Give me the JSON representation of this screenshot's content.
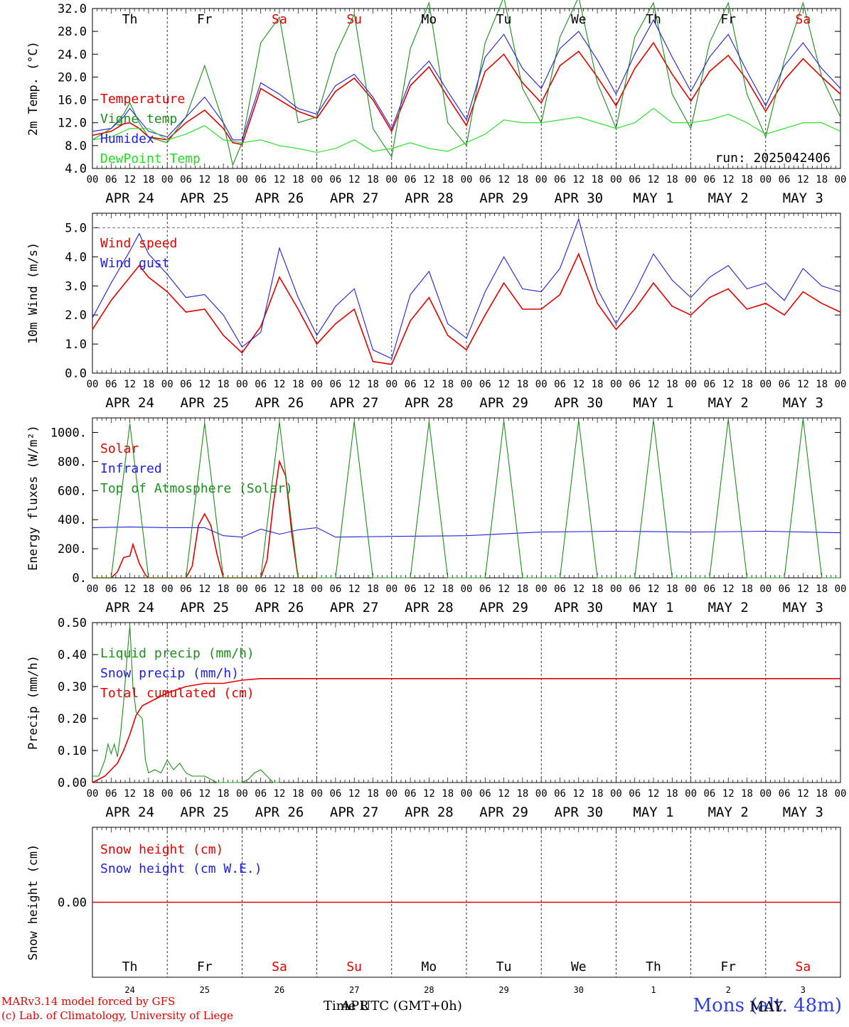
{
  "days": {
    "weekdays": [
      "Th",
      "Fr",
      "Sa",
      "Su",
      "Mo",
      "Tu",
      "We",
      "Th",
      "Fr",
      "Sa"
    ],
    "weekday_colors": [
      "#000000",
      "#000000",
      "#e00000",
      "#e00000",
      "#000000",
      "#000000",
      "#000000",
      "#000000",
      "#000000",
      "#e00000"
    ],
    "date_labels": [
      "APR 24",
      "APR 25",
      "APR 26",
      "APR 27",
      "APR 28",
      "APR 29",
      "APR 30",
      "MAY  1",
      "MAY  2",
      "MAY  3"
    ],
    "hour_labels": [
      "00",
      "06",
      "12",
      "18"
    ],
    "end_hour_label": "00",
    "day_numbers": [
      "24",
      "25",
      "26",
      "27",
      "28",
      "29",
      "30",
      "1",
      "2",
      "3"
    ]
  },
  "panels": {
    "temp": {
      "ylabel": "2m Temp. (°C)",
      "yticks": [
        "4.0",
        "8.0",
        "12.0",
        "16.0",
        "20.0",
        "24.0",
        "28.0",
        "32.0"
      ],
      "legend": [
        {
          "label": "Temperature",
          "color": "#e00000"
        },
        {
          "label": "Vigne temp",
          "color": "#1e8c1e"
        },
        {
          "label": "Humidex",
          "color": "#2020e0"
        },
        {
          "label": "DewPoint Temp",
          "color": "#22dd22"
        }
      ],
      "run_label": "run: 2025042406"
    },
    "wind": {
      "ylabel": "10m Wind (m/s)",
      "yticks": [
        "0.0",
        "1.0",
        "2.0",
        "3.0",
        "4.0",
        "5.0"
      ],
      "legend": [
        {
          "label": "Wind speed",
          "color": "#e00000"
        },
        {
          "label": "Wind gust",
          "color": "#2020e0"
        }
      ]
    },
    "energy": {
      "ylabel": "Energy fluxes (W/m²)",
      "yticks": [
        "0.",
        "200.",
        "400.",
        "600.",
        "800.",
        "1000."
      ],
      "legend": [
        {
          "label": "Solar",
          "color": "#e00000"
        },
        {
          "label": "Infrared",
          "color": "#2020e0"
        },
        {
          "label": "Top of Atmosphere (Solar)",
          "color": "#1e8c1e"
        }
      ]
    },
    "precip": {
      "ylabel": "Precip (mm/h)",
      "yticks": [
        "0.00",
        "0.10",
        "0.20",
        "0.30",
        "0.40",
        "0.50"
      ],
      "legend": [
        {
          "label": "Liquid precip (mm/h)",
          "color": "#1e8c1e"
        },
        {
          "label": "Snow precip (mm/h)",
          "color": "#2020e0"
        },
        {
          "label": "Total cumulated (cm)",
          "color": "#e00000"
        }
      ]
    },
    "snow": {
      "ylabel": "Snow height (cm)",
      "yticks": [
        "0.00"
      ],
      "legend": [
        {
          "label": "Snow height (cm)",
          "color": "#e00000"
        },
        {
          "label": "Snow height (cm W.E.)",
          "color": "#2020e0"
        }
      ]
    }
  },
  "footer": {
    "credit_line1": "MARv3.14 model forced by GFS",
    "credit_line2": "(c) Lab. of Climatology, University of Liege",
    "x_title": "Time UTC (GMT+0h)",
    "overlap_month": "APR",
    "station": "Mons (alt. 48m)",
    "station_month": "MAY"
  },
  "chart_data": [
    {
      "type": "line",
      "ylabel": "2m Temp. (°C)",
      "ylim": [
        4,
        32
      ],
      "x_unit": "hours since APR 24 00 UTC",
      "series": [
        {
          "name": "Temperature",
          "x": [
            0,
            6,
            10,
            12,
            15,
            18,
            24,
            30,
            36,
            42,
            45,
            48,
            54,
            60,
            66,
            72,
            78,
            84,
            90,
            96,
            102,
            108,
            114,
            120,
            126,
            132,
            138,
            144,
            150,
            156,
            162,
            168,
            174,
            180,
            186,
            192,
            198,
            204,
            210,
            216,
            222,
            228,
            234,
            240
          ],
          "values": [
            9.8,
            10.5,
            11.8,
            12.0,
            11.0,
            9.5,
            9.0,
            12.0,
            14.2,
            11.0,
            8.5,
            8.2,
            18.0,
            16.0,
            14.0,
            12.8,
            17.5,
            19.8,
            16.0,
            10.5,
            18.5,
            21.8,
            16.5,
            11.5,
            21.0,
            24.0,
            19.0,
            15.5,
            22.0,
            24.5,
            20.0,
            15.0,
            21.5,
            26.0,
            20.5,
            15.8,
            21.0,
            23.8,
            19.5,
            14.0,
            19.5,
            23.2,
            20.0,
            17.0
          ]
        },
        {
          "name": "Vigne temp",
          "x": [
            0,
            6,
            10,
            12,
            15,
            18,
            24,
            30,
            36,
            42,
            45,
            48,
            54,
            60,
            66,
            72,
            78,
            84,
            90,
            96,
            102,
            108,
            114,
            120,
            126,
            132,
            138,
            144,
            150,
            156,
            162,
            168,
            174,
            180,
            186,
            192,
            198,
            204,
            210,
            216,
            222,
            228,
            234,
            240
          ],
          "values": [
            9.0,
            11.0,
            13.5,
            15.5,
            12.0,
            9.5,
            8.5,
            13.0,
            22.0,
            12.0,
            4.6,
            8.5,
            26.0,
            30.5,
            12.0,
            13.0,
            24.0,
            31.0,
            11.0,
            6.0,
            25.0,
            33.0,
            12.0,
            8.0,
            26.0,
            34.0,
            18.0,
            12.0,
            27.0,
            34.0,
            19.0,
            11.0,
            27.0,
            33.0,
            17.0,
            11.0,
            26.0,
            33.0,
            17.0,
            9.5,
            23.0,
            33.0,
            20.0,
            13.0
          ]
        },
        {
          "name": "Humidex",
          "x": [
            0,
            6,
            10,
            12,
            15,
            18,
            24,
            30,
            36,
            42,
            45,
            48,
            54,
            60,
            66,
            72,
            78,
            84,
            90,
            96,
            102,
            108,
            114,
            120,
            126,
            132,
            138,
            144,
            150,
            156,
            162,
            168,
            174,
            180,
            186,
            192,
            198,
            204,
            210,
            216,
            222,
            228,
            234,
            240
          ],
          "values": [
            10.5,
            11.0,
            13.0,
            14.5,
            12.5,
            10.5,
            9.5,
            13.0,
            16.5,
            12.0,
            9.0,
            9.0,
            19.0,
            17.0,
            14.5,
            13.5,
            18.5,
            20.5,
            16.5,
            11.0,
            19.5,
            22.8,
            17.5,
            12.5,
            23.5,
            27.5,
            21.5,
            18.0,
            25.0,
            28.0,
            23.0,
            17.0,
            24.0,
            30.0,
            23.5,
            17.5,
            23.5,
            27.5,
            21.0,
            15.0,
            22.0,
            26.0,
            21.5,
            18.0
          ]
        },
        {
          "name": "DewPoint Temp",
          "x": [
            0,
            6,
            12,
            18,
            24,
            30,
            36,
            42,
            48,
            54,
            60,
            66,
            72,
            78,
            84,
            90,
            96,
            102,
            108,
            114,
            120,
            126,
            132,
            138,
            144,
            150,
            156,
            162,
            168,
            174,
            180,
            186,
            192,
            198,
            204,
            210,
            216,
            222,
            228,
            234,
            240
          ],
          "values": [
            9.0,
            9.5,
            11.0,
            11.0,
            9.0,
            10.0,
            11.5,
            9.0,
            8.5,
            9.0,
            8.0,
            7.5,
            6.8,
            7.5,
            9.0,
            7.0,
            7.5,
            8.5,
            7.5,
            7.0,
            8.5,
            10.0,
            12.5,
            12.0,
            12.0,
            12.5,
            13.0,
            12.0,
            11.0,
            12.0,
            14.5,
            12.0,
            12.0,
            12.5,
            13.5,
            12.0,
            10.0,
            11.0,
            12.0,
            12.0,
            10.5
          ]
        }
      ]
    },
    {
      "type": "line",
      "ylabel": "10m Wind (m/s)",
      "ylim": [
        0,
        5.5
      ],
      "x_unit": "hours since APR 24 00 UTC",
      "series": [
        {
          "name": "Wind speed",
          "x": [
            0,
            6,
            12,
            15,
            18,
            24,
            30,
            36,
            42,
            48,
            54,
            60,
            66,
            72,
            78,
            84,
            90,
            96,
            102,
            108,
            114,
            120,
            126,
            132,
            138,
            144,
            150,
            156,
            162,
            168,
            174,
            180,
            186,
            192,
            198,
            204,
            210,
            216,
            222,
            228,
            234,
            240
          ],
          "values": [
            1.5,
            2.5,
            3.3,
            3.7,
            3.3,
            2.8,
            2.1,
            2.2,
            1.3,
            0.7,
            1.6,
            3.3,
            2.2,
            1.0,
            1.7,
            2.2,
            0.4,
            0.3,
            1.8,
            2.6,
            1.3,
            0.8,
            2.0,
            3.1,
            2.2,
            2.2,
            2.7,
            4.1,
            2.4,
            1.5,
            2.2,
            3.1,
            2.3,
            2.0,
            2.6,
            2.9,
            2.2,
            2.4,
            2.0,
            2.8,
            2.4,
            2.1
          ]
        },
        {
          "name": "Wind gust",
          "x": [
            0,
            6,
            12,
            15,
            18,
            24,
            30,
            36,
            42,
            48,
            54,
            60,
            66,
            72,
            78,
            84,
            90,
            96,
            102,
            108,
            114,
            120,
            126,
            132,
            138,
            144,
            150,
            156,
            162,
            168,
            174,
            180,
            186,
            192,
            198,
            204,
            210,
            216,
            222,
            228,
            234,
            240
          ],
          "values": [
            1.9,
            3.1,
            4.2,
            4.8,
            4.1,
            3.4,
            2.6,
            2.7,
            2.0,
            0.9,
            1.4,
            4.3,
            2.6,
            1.3,
            2.3,
            2.9,
            0.8,
            0.5,
            2.7,
            3.5,
            1.7,
            1.2,
            2.8,
            4.0,
            2.9,
            2.8,
            3.6,
            5.3,
            2.9,
            1.7,
            2.8,
            4.1,
            3.2,
            2.6,
            3.3,
            3.7,
            2.9,
            3.1,
            2.5,
            3.6,
            3.0,
            2.8
          ]
        }
      ]
    },
    {
      "type": "line",
      "ylabel": "Energy fluxes (W/m²)",
      "ylim": [
        0,
        1100
      ],
      "x_unit": "hours since APR 24 00 UTC",
      "series": [
        {
          "name": "Solar",
          "x": [
            0,
            6,
            8,
            10,
            12,
            13,
            15,
            17,
            18,
            24,
            30,
            32,
            34,
            36,
            38,
            40,
            42,
            48,
            54,
            56,
            58,
            60,
            62,
            64,
            66,
            72
          ],
          "values": [
            0,
            0,
            40,
            140,
            150,
            230,
            100,
            20,
            0,
            0,
            0,
            80,
            360,
            440,
            360,
            160,
            0,
            0,
            0,
            120,
            500,
            800,
            700,
            300,
            0,
            0
          ]
        },
        {
          "name": "Infrared",
          "x": [
            0,
            12,
            24,
            36,
            42,
            48,
            54,
            60,
            66,
            72,
            78,
            96,
            120,
            144,
            168,
            192,
            216,
            240
          ],
          "values": [
            345,
            350,
            345,
            345,
            290,
            280,
            335,
            300,
            330,
            345,
            280,
            285,
            290,
            315,
            320,
            315,
            320,
            310
          ]
        },
        {
          "name": "Top of Atmosphere (Solar)",
          "x": [
            0,
            6,
            12,
            18,
            24,
            30,
            36,
            42,
            48,
            54,
            60,
            66,
            72,
            78,
            84,
            90,
            96,
            102,
            108,
            114,
            120,
            126,
            132,
            138,
            144,
            150,
            156,
            162,
            168,
            174,
            180,
            186,
            192,
            198,
            204,
            210,
            216,
            222,
            228,
            234,
            240
          ],
          "values": [
            0,
            0,
            1060,
            0,
            0,
            0,
            1065,
            0,
            0,
            0,
            1070,
            0,
            0,
            0,
            1075,
            0,
            0,
            0,
            1075,
            0,
            0,
            0,
            1080,
            0,
            0,
            0,
            1085,
            0,
            0,
            0,
            1085,
            0,
            0,
            0,
            1090,
            0,
            0,
            0,
            1095,
            0,
            0
          ]
        }
      ]
    },
    {
      "type": "line",
      "ylabel": "Precip (mm/h)",
      "ylim": [
        0,
        0.5
      ],
      "x_unit": "hours since APR 24 00 UTC",
      "series": [
        {
          "name": "Liquid precip (mm/h)",
          "x": [
            0,
            2,
            4,
            5,
            6,
            7,
            8,
            9,
            10,
            11,
            12,
            13,
            14,
            15,
            16,
            17,
            18,
            20,
            22,
            24,
            26,
            28,
            30,
            32,
            36,
            40,
            42,
            48,
            50,
            52,
            54,
            56,
            58,
            60
          ],
          "values": [
            0.02,
            0.02,
            0.07,
            0.12,
            0.09,
            0.12,
            0.08,
            0.15,
            0.25,
            0.38,
            0.49,
            0.3,
            0.22,
            0.21,
            0.2,
            0.07,
            0.03,
            0.04,
            0.03,
            0.07,
            0.04,
            0.06,
            0.03,
            0.02,
            0.02,
            0.0,
            0.0,
            0.0,
            0.01,
            0.03,
            0.04,
            0.02,
            0.0,
            0.0
          ]
        },
        {
          "name": "Total cumulated (cm)",
          "x": [
            0,
            4,
            8,
            10,
            12,
            14,
            16,
            18,
            24,
            30,
            36,
            42,
            48,
            54,
            60,
            72,
            96,
            120,
            144,
            168,
            192,
            216,
            240
          ],
          "values": [
            0.0,
            0.02,
            0.06,
            0.1,
            0.15,
            0.21,
            0.24,
            0.25,
            0.28,
            0.3,
            0.31,
            0.31,
            0.32,
            0.325,
            0.325,
            0.325,
            0.325,
            0.325,
            0.325,
            0.325,
            0.325,
            0.325,
            0.325
          ]
        }
      ]
    },
    {
      "type": "line",
      "ylabel": "Snow height (cm)",
      "x_unit": "hours since APR 24 00 UTC",
      "series": [
        {
          "name": "Snow height (cm)",
          "x": [
            0,
            240
          ],
          "values": [
            0,
            0
          ]
        }
      ]
    }
  ]
}
